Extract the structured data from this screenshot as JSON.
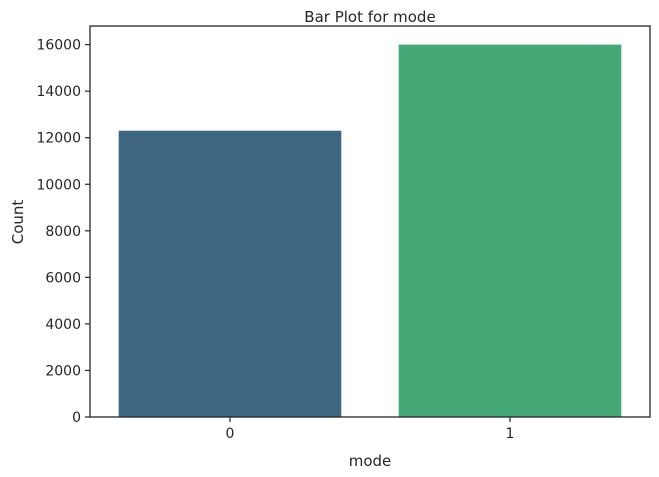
{
  "chart_data": {
    "type": "bar",
    "title": "Bar Plot for mode",
    "xlabel": "mode",
    "ylabel": "Count",
    "categories": [
      "0",
      "1"
    ],
    "values": [
      12300,
      16000
    ],
    "colors": [
      "#3e6680",
      "#45a876"
    ],
    "ylim": [
      0,
      16800
    ],
    "yticks": [
      0,
      2000,
      4000,
      6000,
      8000,
      10000,
      12000,
      14000,
      16000
    ],
    "grid": false,
    "legend": "none"
  }
}
